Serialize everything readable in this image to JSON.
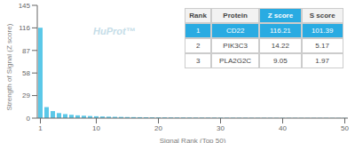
{
  "chart_data": {
    "type": "bar",
    "title": "",
    "xlabel": "Signal Rank (Top 50)",
    "ylabel": "Strength of Signal (Z score)",
    "x": [
      1,
      2,
      3,
      4,
      5,
      6,
      7,
      8,
      9,
      10,
      11,
      12,
      13,
      14,
      15,
      16,
      17,
      18,
      19,
      20,
      21,
      22,
      23,
      24,
      25,
      26,
      27,
      28,
      29,
      30,
      31,
      32,
      33,
      34,
      35,
      36,
      37,
      38,
      39,
      40,
      41,
      42,
      43,
      44,
      45,
      46,
      47,
      48,
      49,
      50
    ],
    "values": [
      116.21,
      14.22,
      9.05,
      6.5,
      5.2,
      4.3,
      3.6,
      3.1,
      2.7,
      2.4,
      2.1,
      1.9,
      1.7,
      1.55,
      1.4,
      1.3,
      1.2,
      1.1,
      1.0,
      0.95,
      0.9,
      0.85,
      0.8,
      0.75,
      0.7,
      0.65,
      0.62,
      0.6,
      0.58,
      0.55,
      0.52,
      0.5,
      0.48,
      0.46,
      0.44,
      0.42,
      0.4,
      0.39,
      0.38,
      0.37,
      0.36,
      0.35,
      0.34,
      0.33,
      0.32,
      0.31,
      0.3,
      0.29,
      0.28,
      0.27
    ],
    "color": "#5bc8e8",
    "xlim": [
      0.5,
      50.5
    ],
    "xticks": [
      1,
      10,
      20,
      30,
      40,
      50
    ],
    "ylim": [
      0,
      145
    ],
    "yticks": [
      0,
      29,
      58,
      87,
      116,
      145
    ],
    "grid": false,
    "annotations": [
      {
        "text": "HuProt™",
        "color": "#c5dde8"
      }
    ],
    "table": {
      "headers": [
        "Rank",
        "Protein",
        "Z score",
        "S score"
      ],
      "rows": [
        [
          "1",
          "CD22",
          "116.21",
          "101.39"
        ],
        [
          "2",
          "PIK3C3",
          "14.22",
          "5.17"
        ],
        [
          "3",
          "PLA2G2C",
          "9.05",
          "1.97"
        ]
      ],
      "color": "#29abe2"
    }
  }
}
